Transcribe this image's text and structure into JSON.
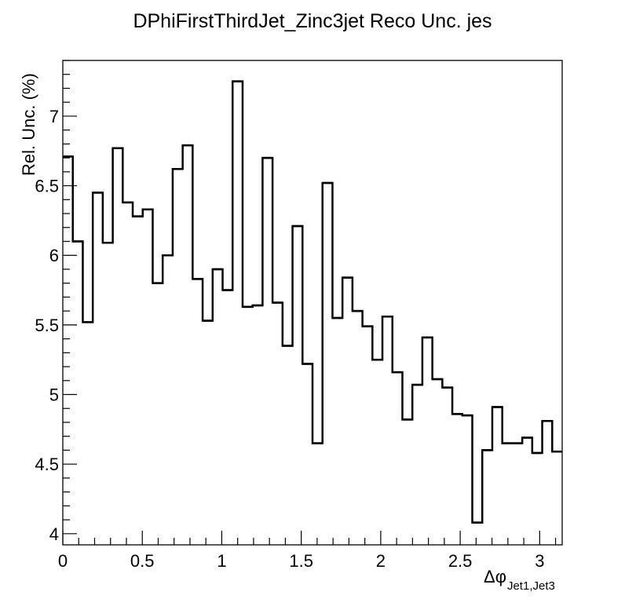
{
  "chart_data": {
    "type": "step",
    "title": "DPhiFirstThirdJet_Zinc3jet Reco Unc. jes",
    "ylabel": "Rel. Unc. (%)",
    "xlabel_main": "Δφ",
    "xlabel_sub": "Jet1,Jet3",
    "xlim": [
      0,
      3.14159
    ],
    "ylim": [
      3.92,
      7.4
    ],
    "x_ticks": [
      0,
      0.5,
      1,
      1.5,
      2,
      2.5,
      3
    ],
    "x_tick_labels": [
      "0",
      "0.5",
      "1",
      "1.5",
      "2",
      "2.5",
      "3"
    ],
    "y_ticks": [
      4,
      4.5,
      5,
      5.5,
      6,
      6.5,
      7
    ],
    "y_tick_labels": [
      "4",
      "4.5",
      "5",
      "5.5",
      "6",
      "6.5",
      "7"
    ],
    "grid": false,
    "bin_edges": [
      0,
      0.0628,
      0.1257,
      0.1885,
      0.2513,
      0.3142,
      0.377,
      0.4398,
      0.5027,
      0.5655,
      0.6283,
      0.6912,
      0.754,
      0.8168,
      0.8796,
      0.9425,
      1.0053,
      1.0681,
      1.131,
      1.1938,
      1.2566,
      1.3195,
      1.3823,
      1.4451,
      1.508,
      1.5708,
      1.6336,
      1.6965,
      1.7593,
      1.8221,
      1.885,
      1.9478,
      2.0106,
      2.0735,
      2.1363,
      2.1991,
      2.2619,
      2.3248,
      2.3876,
      2.4504,
      2.5133,
      2.5761,
      2.6389,
      2.7018,
      2.7646,
      2.8274,
      2.8903,
      2.9531,
      3.0159,
      3.0788,
      3.1416
    ],
    "values": [
      6.71,
      6.1,
      5.52,
      6.45,
      6.09,
      6.77,
      6.38,
      6.28,
      6.33,
      5.8,
      6.0,
      6.62,
      6.79,
      5.83,
      5.53,
      5.9,
      5.75,
      7.25,
      5.63,
      5.64,
      6.7,
      5.66,
      5.35,
      6.21,
      5.22,
      4.65,
      6.52,
      5.55,
      5.84,
      5.6,
      5.49,
      5.25,
      5.56,
      5.16,
      4.82,
      5.07,
      5.41,
      5.11,
      5.05,
      4.86,
      4.85,
      4.08,
      4.6,
      4.91,
      4.65,
      4.65,
      4.69,
      4.58,
      4.81,
      4.59
    ]
  }
}
